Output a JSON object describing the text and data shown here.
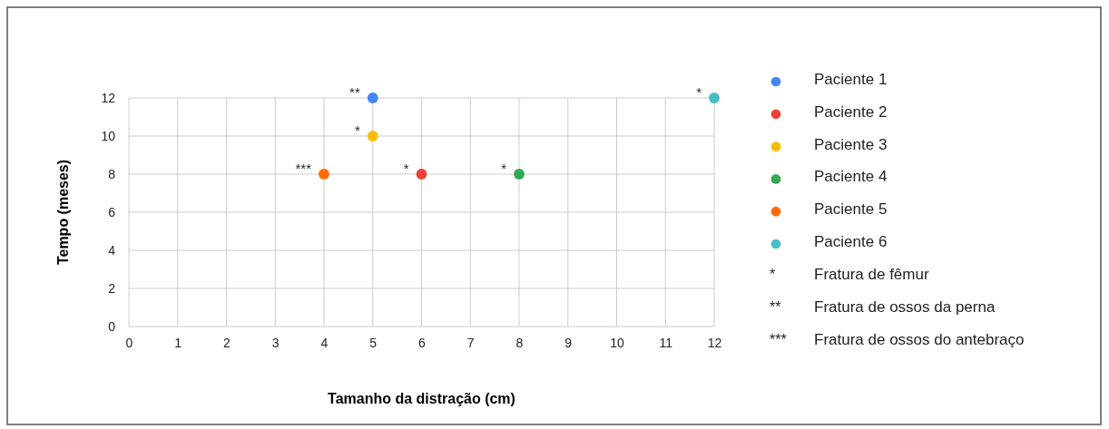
{
  "chart_data": {
    "type": "scatter",
    "xlabel": "Tamanho da distração (cm)",
    "ylabel": "Tempo (meses)",
    "xlim": [
      0,
      12
    ],
    "xticks": [
      0,
      1,
      2,
      3,
      4,
      5,
      6,
      7,
      8,
      9,
      10,
      11,
      12
    ],
    "ylim": [
      0,
      12
    ],
    "yticks": [
      0,
      2,
      4,
      6,
      8,
      10,
      12
    ],
    "grid": true,
    "legend": "right",
    "marker": "circle",
    "series": [
      {
        "name": "Paciente 1",
        "color": "#4285f4",
        "x": [
          5
        ],
        "values": [
          12
        ]
      },
      {
        "name": "Paciente 2",
        "color": "#ea4335",
        "x": [
          6
        ],
        "values": [
          8
        ]
      },
      {
        "name": "Paciente 3",
        "color": "#fbbc04",
        "x": [
          5
        ],
        "values": [
          10
        ]
      },
      {
        "name": "Paciente 4",
        "color": "#34a853",
        "x": [
          8
        ],
        "values": [
          8
        ]
      },
      {
        "name": "Paciente 5",
        "color": "#ff6d01",
        "x": [
          4
        ],
        "values": [
          8
        ]
      },
      {
        "name": "Paciente 6",
        "color": "#46bdc6",
        "x": [
          12
        ],
        "values": [
          12
        ]
      }
    ],
    "annotations": [
      {
        "text": "**",
        "x": 5,
        "y": 12
      },
      {
        "text": "*",
        "x": 5,
        "y": 10
      },
      {
        "text": "*",
        "x": 6,
        "y": 8
      },
      {
        "text": "*",
        "x": 8,
        "y": 8
      },
      {
        "text": "***",
        "x": 4,
        "y": 8
      },
      {
        "text": "*",
        "x": 12,
        "y": 12
      },
      "*\tFratura de fêmur",
      "**\tFratura de ossos da perna",
      "***\tFratura de ossos do antebraço"
    ]
  }
}
